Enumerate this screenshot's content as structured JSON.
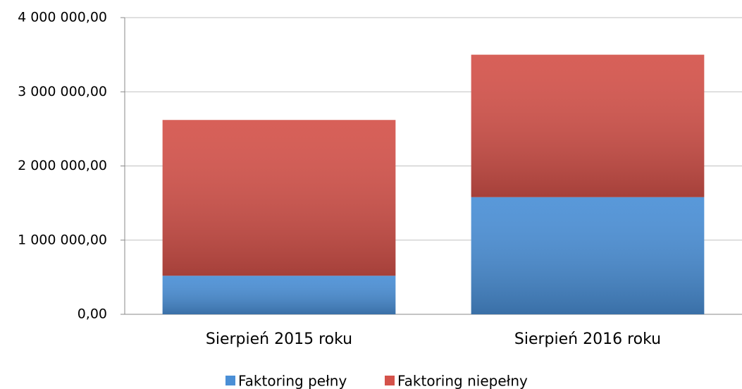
{
  "chart_data": {
    "type": "bar",
    "stacked": true,
    "categories": [
      "Sierpień 2015 roku",
      "Sierpień 2016 roku"
    ],
    "series": [
      {
        "name": "Faktoring pełny",
        "color": "#4a8fd6",
        "values": [
          520000,
          1580000
        ]
      },
      {
        "name": "Faktoring niepełny",
        "color": "#d4524a",
        "values": [
          2100000,
          1920000
        ]
      }
    ],
    "ylim": [
      0,
      4000000
    ],
    "yticks": [
      {
        "value": 0,
        "label": "0,00"
      },
      {
        "value": 1000000,
        "label": "1 000 000,00"
      },
      {
        "value": 2000000,
        "label": "2 000 000,00"
      },
      {
        "value": 3000000,
        "label": "3 000 000,00"
      },
      {
        "value": 4000000,
        "label": "4 000 000,00"
      }
    ],
    "grid": true,
    "legend": "bottom"
  }
}
